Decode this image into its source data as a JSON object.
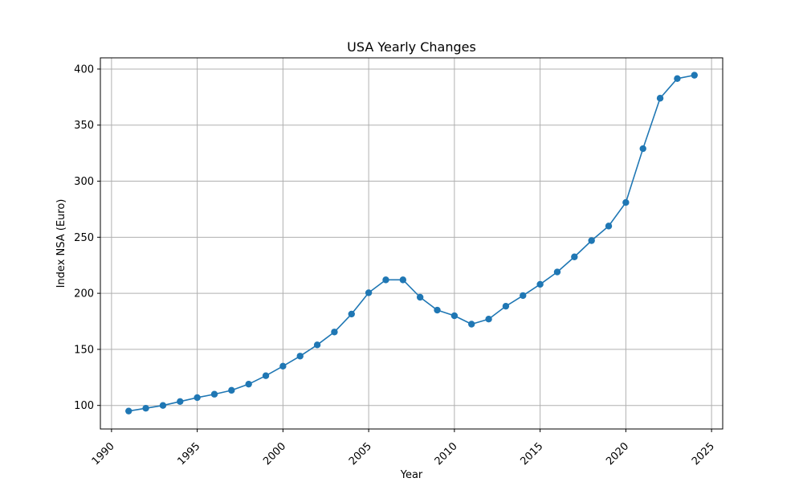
{
  "chart_data": {
    "type": "line",
    "title": "USA Yearly Changes",
    "xlabel": "Year",
    "ylabel": "Index NSA (Euro)",
    "xlim": [
      1989.35,
      2025.65
    ],
    "ylim": [
      79,
      410
    ],
    "xticks": [
      1990,
      1995,
      2000,
      2005,
      2010,
      2015,
      2020,
      2025
    ],
    "yticks": [
      100,
      150,
      200,
      250,
      300,
      350,
      400
    ],
    "x_tick_rotation": 45,
    "grid": true,
    "series": [
      {
        "color": "#1f77b4",
        "marker": "circle",
        "x": [
          1991,
          1992,
          1993,
          1994,
          1995,
          1996,
          1997,
          1998,
          1999,
          2000,
          2001,
          2002,
          2003,
          2004,
          2005,
          2006,
          2007,
          2008,
          2009,
          2010,
          2011,
          2012,
          2013,
          2014,
          2015,
          2016,
          2017,
          2018,
          2019,
          2020,
          2021,
          2022,
          2023,
          2024
        ],
        "y": [
          95,
          97.5,
          100,
          103.5,
          107,
          110,
          113.5,
          119,
          126.5,
          135,
          144,
          154,
          165.5,
          181.5,
          200.5,
          212,
          212,
          196.5,
          185,
          180,
          172.5,
          177,
          188.5,
          198,
          208,
          219,
          232.5,
          247,
          260,
          281,
          329,
          374,
          391.5,
          394.5
        ]
      }
    ]
  }
}
